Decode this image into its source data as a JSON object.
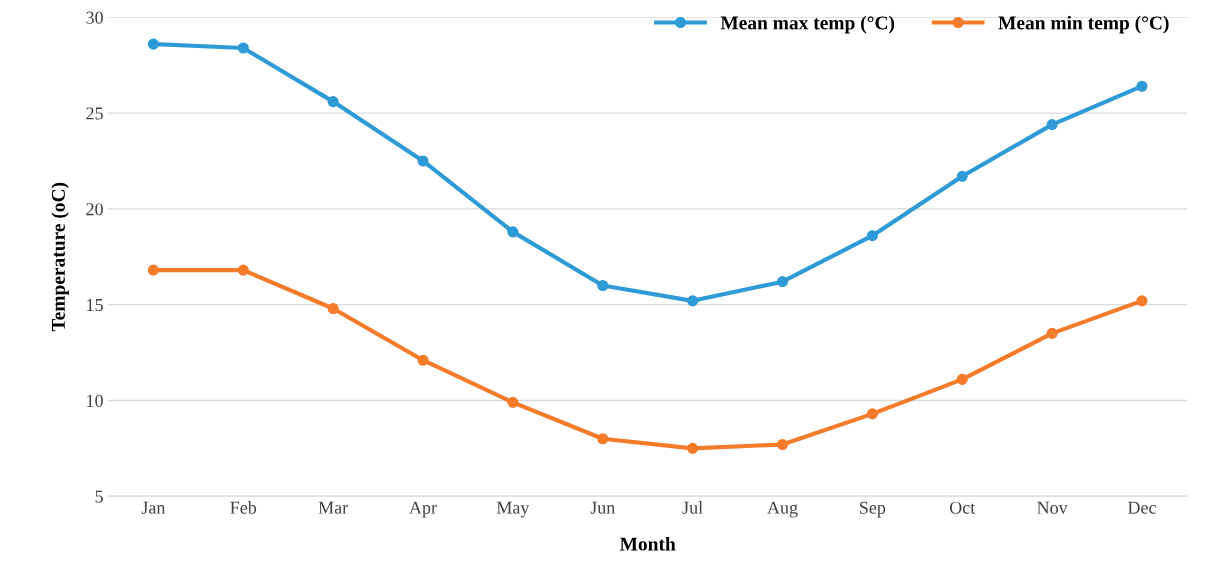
{
  "chart_data": {
    "type": "line",
    "xlabel": "Month",
    "ylabel": "Temperature (oC)",
    "categories": [
      "Jan",
      "Feb",
      "Mar",
      "Apr",
      "May",
      "Jun",
      "Jul",
      "Aug",
      "Sep",
      "Oct",
      "Nov",
      "Dec"
    ],
    "series": [
      {
        "name": "Mean max temp (°C)",
        "color": "#2e9bd6",
        "values": [
          28.6,
          28.4,
          25.6,
          22.5,
          18.8,
          16.0,
          15.2,
          16.2,
          18.6,
          21.7,
          24.4,
          26.4
        ]
      },
      {
        "name": "Mean min temp (°C)",
        "color": "#f47b2a",
        "values": [
          16.8,
          16.8,
          14.8,
          12.1,
          9.9,
          8.0,
          7.5,
          7.7,
          9.3,
          11.1,
          13.5,
          15.2
        ]
      }
    ],
    "ylim": [
      5,
      30
    ],
    "yticks": [
      5,
      10,
      15,
      20,
      25,
      30
    ],
    "grid": "y",
    "legend": "top right",
    "marker": "circle",
    "line_style": "solid"
  }
}
